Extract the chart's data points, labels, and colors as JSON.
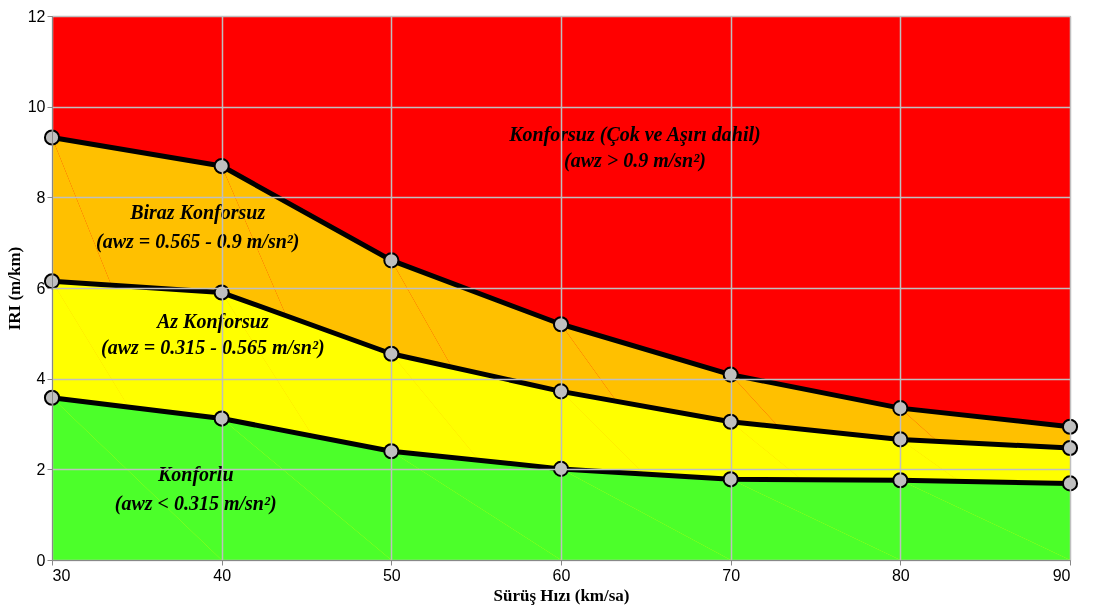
{
  "chart_data": {
    "type": "area",
    "xlabel": "Sürüş Hızı (km/sa)",
    "ylabel": "IRI (m/km)",
    "x": [
      30,
      40,
      50,
      60,
      70,
      80,
      90
    ],
    "xlim": [
      30,
      90
    ],
    "xticks": [
      30,
      40,
      50,
      60,
      70,
      80,
      90
    ],
    "ylim": [
      0,
      12
    ],
    "yticks": [
      0,
      2,
      4,
      6,
      8,
      10,
      12
    ],
    "grid": true,
    "marker": "circle",
    "line_style": "solid",
    "bands": [
      {
        "axis": "y",
        "from": 0,
        "to": 12,
        "color": "#ff0000"
      }
    ],
    "series": [
      {
        "color": "#ffc000",
        "values": [
          9.32,
          8.69,
          6.61,
          5.2,
          4.09,
          3.35,
          2.94
        ]
      },
      {
        "color": "#ffff00",
        "values": [
          6.15,
          5.9,
          4.55,
          3.72,
          3.05,
          2.66,
          2.47
        ]
      },
      {
        "color": "#4cff2a",
        "values": [
          3.58,
          3.12,
          2.4,
          2.01,
          1.78,
          1.76,
          1.69
        ]
      }
    ],
    "annotations": [
      "Konforsuz (Çok ve Aşırı dahil)",
      "(awz > 0.9 m/sn²)",
      "Biraz Konforsuz",
      "(awz = 0.565 - 0.9 m/sn²)",
      "Az Konforsuz",
      "(awz = 0.315 - 0.565 m/sn²)",
      "Konforlu",
      "(awz < 0.315 m/sn²)"
    ]
  }
}
